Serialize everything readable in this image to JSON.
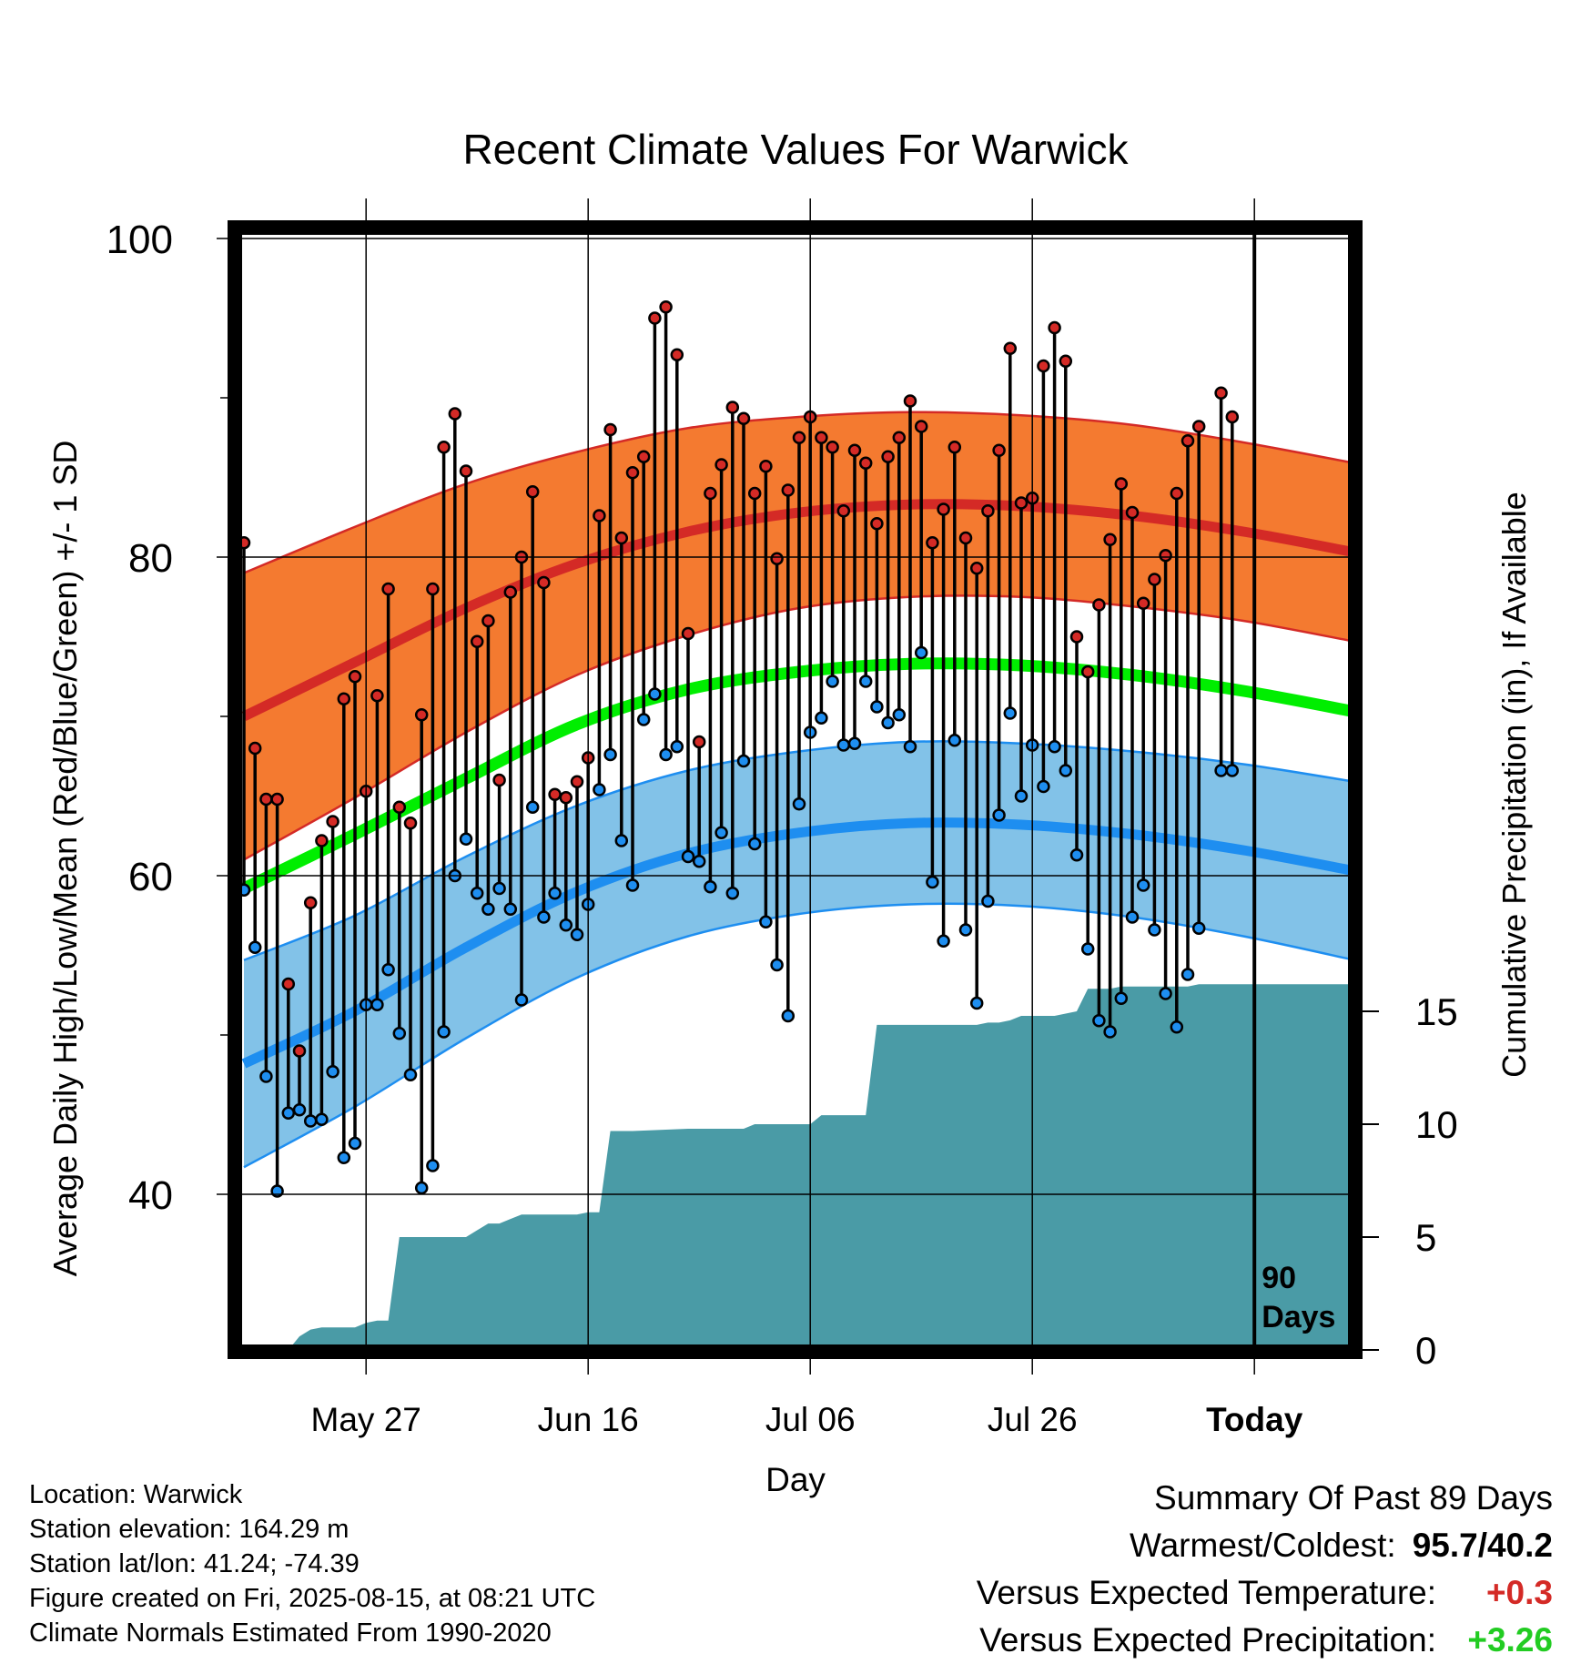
{
  "chart_data": {
    "type": "line",
    "title": "Recent Climate Values For Warwick",
    "xlabel": "Day",
    "ylabel": "Average Daily High/Low/Mean (Red/Blue/Green) +/- 1 SD",
    "y2label": "Cumulative Precipitation (in), If Available",
    "ylim": [
      30,
      100
    ],
    "y_ticks": [
      40,
      60,
      80,
      100
    ],
    "y2lim": [
      0,
      30
    ],
    "y2_ticks": [
      0,
      5,
      10,
      15
    ],
    "x_ticks": [
      {
        "label": "May 27",
        "day": 11
      },
      {
        "label": "Jun 16",
        "day": 31
      },
      {
        "label": "Jul 06",
        "day": 51
      },
      {
        "label": "Jul 26",
        "day": 71
      },
      {
        "label": "Today",
        "day": 91
      }
    ],
    "x_range": [
      0,
      100
    ],
    "grid": true,
    "today_marker": {
      "day": 91,
      "label_line1": "90",
      "label_line2": "Days"
    },
    "colors": {
      "high_band": "#f47a30",
      "high_mean": "#d42a26",
      "low_band": "#82c2e8",
      "low_mean": "#1e8ef0",
      "mean": "#00ee00",
      "precip": "#4a9ba6",
      "high_marker": "#d42a26",
      "low_marker": "#1e8ef0"
    },
    "normals": {
      "days": [
        0,
        10,
        20,
        30,
        40,
        50,
        60,
        70,
        80,
        90,
        100
      ],
      "high_mean": [
        70.0,
        73.4,
        76.8,
        79.6,
        81.6,
        82.8,
        83.3,
        83.2,
        82.6,
        81.6,
        80.3
      ],
      "high_sd": [
        9.0,
        8.5,
        7.8,
        7.0,
        6.5,
        6.0,
        5.8,
        5.7,
        5.7,
        5.6,
        5.6
      ],
      "low_mean": [
        48.2,
        51.5,
        55.5,
        59.0,
        61.4,
        62.7,
        63.3,
        63.2,
        62.6,
        61.6,
        60.3
      ],
      "low_sd": [
        6.5,
        6.0,
        5.7,
        5.4,
        5.2,
        5.1,
        5.1,
        5.1,
        5.2,
        5.4,
        5.6
      ],
      "mean": [
        59.2,
        62.6,
        66.1,
        69.5,
        71.7,
        72.8,
        73.3,
        73.2,
        72.6,
        71.6,
        70.3
      ]
    },
    "observed": {
      "days": [
        0,
        1,
        2,
        3,
        4,
        5,
        6,
        7,
        8,
        9,
        10,
        11,
        12,
        13,
        14,
        15,
        16,
        17,
        18,
        19,
        20,
        21,
        22,
        23,
        24,
        25,
        26,
        27,
        28,
        29,
        30,
        31,
        32,
        33,
        34,
        35,
        36,
        37,
        38,
        39,
        40,
        41,
        42,
        43,
        44,
        45,
        46,
        47,
        48,
        49,
        50,
        51,
        52,
        53,
        54,
        55,
        56,
        57,
        58,
        59,
        60,
        61,
        62,
        63,
        64,
        65,
        66,
        67,
        68,
        69,
        70,
        71,
        72,
        73,
        74,
        75,
        76,
        77,
        78,
        79,
        80,
        81,
        82,
        83,
        84,
        85,
        86,
        87,
        88,
        89,
        90
      ],
      "high": [
        80.9,
        68.0,
        64.8,
        64.8,
        53.2,
        49.0,
        58.3,
        62.2,
        63.4,
        71.1,
        72.5,
        65.3,
        71.3,
        78.0,
        64.3,
        63.3,
        70.1,
        78.0,
        86.9,
        89.0,
        85.4,
        74.7,
        76.0,
        66.0,
        77.8,
        80.0,
        84.1,
        78.4,
        65.1,
        64.9,
        65.9,
        67.4,
        82.6,
        88.0,
        81.2,
        85.3,
        86.3,
        95.0,
        95.7,
        92.7,
        75.2,
        68.4,
        84.0,
        85.8,
        89.4,
        88.7,
        84.0,
        85.7,
        79.9,
        84.2,
        87.5,
        88.8,
        87.5,
        86.9,
        82.9,
        86.7,
        85.9,
        82.1,
        86.3,
        87.5,
        89.8,
        88.2,
        80.9,
        83.0,
        86.9,
        81.2,
        79.3,
        82.9,
        86.7,
        93.1,
        83.4,
        83.7,
        92.0,
        94.4,
        92.3,
        75.0,
        72.8,
        77.0,
        81.1,
        84.6,
        82.8,
        77.1,
        78.6,
        80.1,
        84.0,
        87.3,
        88.2,
        null,
        90.3,
        88.8,
        null
      ],
      "low": [
        59.1,
        55.5,
        47.4,
        40.2,
        45.1,
        45.3,
        44.6,
        44.7,
        47.7,
        42.3,
        43.2,
        51.9,
        51.9,
        54.1,
        50.1,
        47.5,
        40.4,
        41.8,
        50.2,
        60.0,
        62.3,
        58.9,
        57.9,
        59.2,
        57.9,
        52.2,
        64.3,
        57.4,
        58.9,
        56.9,
        56.3,
        58.2,
        65.4,
        67.6,
        62.2,
        59.4,
        69.8,
        71.4,
        67.6,
        68.1,
        61.2,
        60.9,
        59.3,
        62.7,
        58.9,
        67.2,
        62.0,
        57.1,
        54.4,
        51.2,
        64.5,
        69.0,
        69.9,
        72.2,
        68.2,
        68.3,
        72.2,
        70.6,
        69.6,
        70.1,
        68.1,
        74.0,
        59.6,
        55.9,
        68.5,
        56.6,
        52.0,
        58.4,
        63.8,
        70.2,
        65.0,
        68.2,
        65.6,
        68.1,
        66.6,
        61.3,
        55.4,
        50.9,
        50.2,
        52.3,
        57.4,
        59.4,
        56.6,
        52.6,
        50.5,
        53.8,
        56.7,
        null,
        66.6,
        66.6,
        null
      ]
    },
    "precip_cumulative": {
      "days": [
        0,
        4,
        5,
        6,
        7,
        8,
        10,
        11,
        12,
        13,
        14,
        15,
        16,
        18,
        20,
        21,
        22,
        23,
        24,
        25,
        30,
        31,
        32,
        33,
        35,
        40,
        45,
        46,
        50,
        51,
        52,
        55,
        56,
        57,
        58,
        65,
        66,
        67,
        68,
        69,
        70,
        72,
        73,
        74,
        75,
        76,
        78,
        79,
        84,
        85,
        86,
        100
      ],
      "values": [
        0,
        0,
        0.6,
        0.9,
        1.0,
        1.0,
        1.0,
        1.2,
        1.3,
        1.3,
        5.0,
        5.0,
        5.0,
        5.0,
        5.0,
        5.3,
        5.6,
        5.6,
        5.8,
        6.0,
        6.0,
        6.1,
        6.1,
        9.7,
        9.7,
        9.8,
        9.8,
        10.0,
        10.0,
        10.0,
        10.4,
        10.4,
        10.4,
        14.4,
        14.4,
        14.4,
        14.4,
        14.5,
        14.5,
        14.6,
        14.8,
        14.8,
        14.8,
        14.9,
        15.0,
        16.0,
        16.0,
        16.1,
        16.1,
        16.1,
        16.2,
        16.2
      ]
    }
  },
  "info": {
    "location": "Location: Warwick",
    "elevation": "Station elevation: 164.29 m",
    "latlon": "Station lat/lon: 41.24; -74.39",
    "created": "Figure created on Fri, 2025-08-15, at 08:21 UTC",
    "normals": "Climate Normals Estimated From 1990-2020"
  },
  "summary": {
    "heading": "Summary Of Past 89 Days",
    "extremes_label": "Warmest/Coldest:",
    "extremes_value": "95.7/40.2",
    "temp_label": "Versus Expected Temperature:",
    "temp_value": "+0.3",
    "temp_color": "#d42a26",
    "precip_label": "Versus Expected Precipitation:",
    "precip_value": "+3.26",
    "precip_color": "#22cc22"
  }
}
